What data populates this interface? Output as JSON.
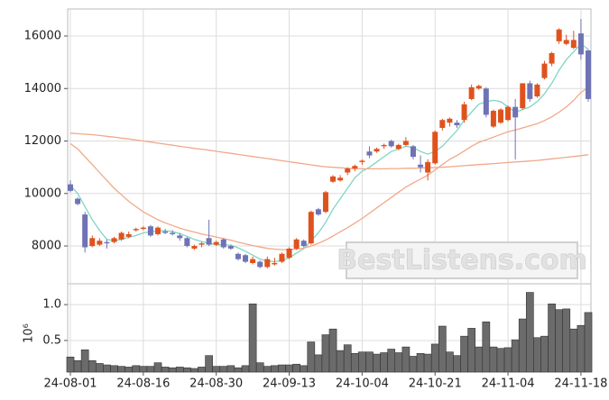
{
  "chart_data": [
    {
      "type": "candlestick",
      "watermark": "BestListens.com",
      "up_color": "#e0521d",
      "down_color": "#6f73b5",
      "ylim": [
        6560,
        17030
      ],
      "yticks": [
        8000,
        10000,
        12000,
        14000,
        16000
      ],
      "grid": true,
      "open": [
        10350,
        9800,
        9200,
        8000,
        8050,
        8150,
        8150,
        8250,
        8350,
        8600,
        8650,
        8750,
        8450,
        8550,
        8500,
        8400,
        8300,
        7900,
        8050,
        8300,
        8050,
        8250,
        8000,
        7700,
        7650,
        7350,
        7400,
        7200,
        7300,
        7400,
        7550,
        7900,
        8200,
        8100,
        9400,
        9300,
        10450,
        10500,
        10800,
        10950,
        11200,
        11600,
        11600,
        11800,
        12000,
        11700,
        11850,
        11800,
        11100,
        10800,
        11150,
        12500,
        12700,
        12700,
        12800,
        13600,
        14000,
        14000,
        12550,
        12700,
        12800,
        13300,
        13250,
        14200,
        13700,
        14400,
        14950,
        15800,
        15700,
        15550,
        16100,
        15450
      ],
      "high": [
        10500,
        9850,
        9300,
        8400,
        8300,
        8250,
        8350,
        8550,
        8550,
        8700,
        8750,
        8800,
        8750,
        8650,
        8600,
        8500,
        8350,
        8050,
        8150,
        9000,
        8200,
        8300,
        8050,
        7750,
        7700,
        7600,
        7450,
        7600,
        7550,
        7750,
        7950,
        8300,
        8250,
        9350,
        9450,
        10100,
        10700,
        10700,
        11000,
        11100,
        11300,
        11800,
        11750,
        11900,
        12050,
        11900,
        12150,
        11850,
        11450,
        11300,
        12400,
        12850,
        12900,
        12800,
        13500,
        14150,
        14150,
        14050,
        13200,
        13250,
        13350,
        13600,
        14200,
        14300,
        14200,
        15050,
        15400,
        16300,
        16050,
        16200,
        16650,
        15500
      ],
      "low": [
        10050,
        9550,
        7750,
        7950,
        8000,
        7900,
        8100,
        8200,
        8300,
        8550,
        8600,
        8350,
        8400,
        8450,
        8400,
        8200,
        7950,
        7850,
        7950,
        8000,
        8000,
        7900,
        7850,
        7450,
        7350,
        7300,
        7150,
        7150,
        7250,
        7350,
        7500,
        7850,
        7950,
        8050,
        9150,
        9250,
        10400,
        10450,
        10700,
        10850,
        11100,
        11350,
        11550,
        11700,
        11750,
        11650,
        11800,
        11300,
        10800,
        10500,
        11100,
        12400,
        12550,
        12500,
        12700,
        13550,
        13950,
        12900,
        12500,
        12650,
        12750,
        11300,
        13200,
        13500,
        13650,
        14350,
        14850,
        15700,
        15650,
        15500,
        15100,
        13500
      ],
      "close": [
        10100,
        9600,
        7950,
        8300,
        8200,
        8100,
        8300,
        8500,
        8450,
        8650,
        8700,
        8400,
        8700,
        8500,
        8450,
        8300,
        8000,
        8000,
        8100,
        8050,
        8150,
        7950,
        7900,
        7500,
        7400,
        7500,
        7200,
        7500,
        7350,
        7700,
        7900,
        8250,
        8000,
        9300,
        9200,
        10050,
        10650,
        10600,
        10950,
        11050,
        11250,
        11450,
        11700,
        11850,
        11800,
        11850,
        12000,
        11400,
        11000,
        11200,
        12350,
        12800,
        12850,
        12600,
        13400,
        14050,
        14100,
        13000,
        13150,
        13200,
        13300,
        12900,
        14200,
        13600,
        14150,
        14950,
        15350,
        16250,
        15850,
        15850,
        15300,
        13600
      ],
      "series": [
        {
          "color": "#7fd6c4",
          "values": [
            10300,
            10000,
            9500,
            9000,
            8600,
            8250,
            8200,
            8250,
            8330,
            8400,
            8500,
            8540,
            8580,
            8580,
            8550,
            8470,
            8370,
            8250,
            8170,
            8100,
            8050,
            8050,
            8030,
            7930,
            7800,
            7650,
            7500,
            7430,
            7400,
            7450,
            7550,
            7730,
            7900,
            8200,
            8500,
            8900,
            9400,
            9800,
            10200,
            10600,
            10850,
            11000,
            11200,
            11400,
            11600,
            11700,
            11800,
            11750,
            11600,
            11500,
            11600,
            11800,
            12100,
            12400,
            12800,
            13100,
            13400,
            13500,
            13550,
            13500,
            13300,
            13100,
            13200,
            13300,
            13500,
            13800,
            14200,
            14700,
            15100,
            15400,
            15700,
            15500
          ]
        },
        {
          "color": "#f0a98a",
          "values": [
            11900,
            11700,
            11400,
            11100,
            10800,
            10500,
            10200,
            9950,
            9700,
            9500,
            9300,
            9150,
            9000,
            8880,
            8780,
            8680,
            8600,
            8530,
            8460,
            8400,
            8340,
            8280,
            8220,
            8150,
            8080,
            8020,
            7960,
            7910,
            7880,
            7860,
            7860,
            7880,
            7920,
            8000,
            8100,
            8230,
            8380,
            8540,
            8700,
            8870,
            9050,
            9250,
            9450,
            9650,
            9850,
            10050,
            10250,
            10400,
            10550,
            10700,
            10900,
            11100,
            11300,
            11450,
            11620,
            11800,
            11950,
            12050,
            12150,
            12250,
            12350,
            12420,
            12500,
            12580,
            12660,
            12780,
            12920,
            13100,
            13300,
            13550,
            13850,
            14050
          ]
        },
        {
          "color": "#f0a98a",
          "values": [
            12300,
            12280,
            12260,
            12240,
            12210,
            12180,
            12150,
            12110,
            12080,
            12040,
            12000,
            11960,
            11920,
            11880,
            11840,
            11800,
            11760,
            11720,
            11690,
            11650,
            11610,
            11570,
            11530,
            11490,
            11450,
            11410,
            11370,
            11330,
            11290,
            11250,
            11210,
            11170,
            11130,
            11090,
            11050,
            11020,
            11000,
            10980,
            10960,
            10950,
            10940,
            10940,
            10940,
            10940,
            10950,
            10950,
            10960,
            10960,
            10970,
            10980,
            10990,
            11000,
            11020,
            11040,
            11060,
            11080,
            11100,
            11120,
            11140,
            11160,
            11180,
            11200,
            11220,
            11240,
            11260,
            11290,
            11320,
            11350,
            11380,
            11410,
            11440,
            11480
          ]
        }
      ]
    },
    {
      "type": "bar",
      "color": "#6b6b6b",
      "y_label": "10⁶",
      "ylim": [
        0.06,
        1.29
      ],
      "yticks": [
        0.5,
        {
          "value": 1,
          "label": "1.0"
        }
      ],
      "grid": true,
      "categories": [
        "24-08-01",
        null,
        null,
        null,
        null,
        null,
        null,
        null,
        null,
        null,
        "24-08-16",
        null,
        null,
        null,
        null,
        null,
        null,
        null,
        null,
        null,
        "24-08-30",
        null,
        null,
        null,
        null,
        null,
        null,
        null,
        null,
        null,
        "24-09-13",
        null,
        null,
        null,
        null,
        null,
        null,
        null,
        null,
        null,
        "24-10-04",
        null,
        null,
        null,
        null,
        null,
        null,
        null,
        null,
        null,
        "24-10-21",
        null,
        null,
        null,
        null,
        null,
        null,
        null,
        null,
        null,
        "24-11-04",
        null,
        null,
        null,
        null,
        null,
        null,
        null,
        null,
        null,
        "24-11-18",
        null
      ],
      "values": [
        0.27,
        0.22,
        0.37,
        0.22,
        0.18,
        0.16,
        0.15,
        0.14,
        0.13,
        0.15,
        0.14,
        0.14,
        0.19,
        0.13,
        0.12,
        0.13,
        0.12,
        0.11,
        0.13,
        0.29,
        0.14,
        0.14,
        0.15,
        0.12,
        0.15,
        1.01,
        0.19,
        0.14,
        0.15,
        0.16,
        0.16,
        0.17,
        0.15,
        0.48,
        0.3,
        0.58,
        0.66,
        0.36,
        0.44,
        0.32,
        0.34,
        0.34,
        0.31,
        0.33,
        0.38,
        0.33,
        0.41,
        0.28,
        0.32,
        0.31,
        0.45,
        0.7,
        0.34,
        0.29,
        0.56,
        0.67,
        0.41,
        0.76,
        0.41,
        0.39,
        0.4,
        0.51,
        0.8,
        1.17,
        0.54,
        0.56,
        1.01,
        0.93,
        0.94,
        0.66,
        0.71,
        0.89
      ]
    }
  ]
}
